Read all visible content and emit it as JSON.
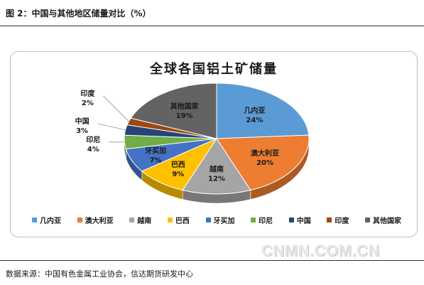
{
  "caption": "图 2：中国与其他地区储量对比（%）",
  "source": "数据来源：中国有色金属工业协会，信达期货研发中心",
  "watermark": "CNMN.COM.CN",
  "chart_data": {
    "type": "pie",
    "title": "全球各国铝土矿储量",
    "unit": "%",
    "legend_position": "bottom",
    "slices": [
      {
        "name": "几内亚",
        "value": 24,
        "label": "24%",
        "color": "#5b9bd5"
      },
      {
        "name": "澳大利亚",
        "value": 20,
        "label": "20%",
        "color": "#ed7d31"
      },
      {
        "name": "越南",
        "value": 12,
        "label": "12%",
        "color": "#a5a5a5"
      },
      {
        "name": "巴西",
        "value": 9,
        "label": "9%",
        "color": "#ffc000"
      },
      {
        "name": "牙买加",
        "value": 7,
        "label": "7%",
        "color": "#4472c4"
      },
      {
        "name": "印尼",
        "value": 4,
        "label": "4%",
        "color": "#70ad47"
      },
      {
        "name": "中国",
        "value": 3,
        "label": "3%",
        "color": "#264478"
      },
      {
        "name": "印度",
        "value": 2,
        "label": "2%",
        "color": "#9e480e"
      },
      {
        "name": "其他国家",
        "value": 19,
        "label": "19%",
        "color": "#636363"
      }
    ]
  }
}
